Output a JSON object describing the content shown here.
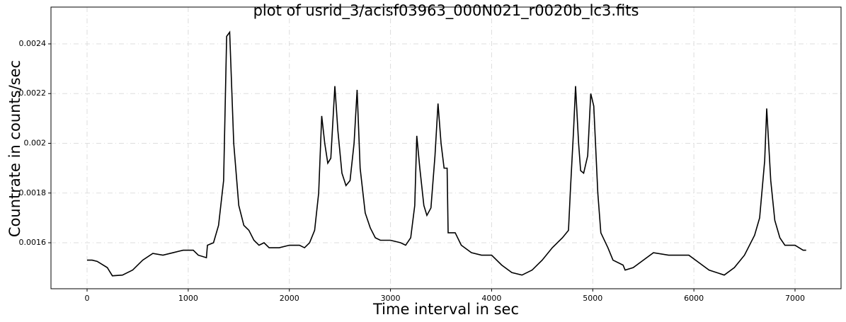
{
  "chart_data": {
    "type": "line",
    "title": "plot of usrid_3/acisf03963_000N021_r0020b_lc3.fits",
    "x_label": "Time interval in sec",
    "y_label": "Countrate in counts/sec",
    "grid": true,
    "xlim": [
      -357,
      7455
    ],
    "ylim": [
      0.001415,
      0.002548
    ],
    "xticks": [
      0,
      1000,
      2000,
      3000,
      4000,
      5000,
      6000,
      7000
    ],
    "yticks": [
      0.0016,
      0.0018,
      0.002,
      0.0022,
      0.0024
    ],
    "series": [
      {
        "color": "#000000",
        "x": [
          0,
          50,
          100,
          200,
          250,
          350,
          450,
          550,
          650,
          750,
          850,
          950,
          1000,
          1050,
          1100,
          1180,
          1190,
          1250,
          1300,
          1350,
          1380,
          1410,
          1450,
          1500,
          1550,
          1600,
          1650,
          1700,
          1750,
          1800,
          1900,
          2000,
          2100,
          2150,
          2200,
          2250,
          2290,
          2320,
          2350,
          2380,
          2410,
          2450,
          2480,
          2520,
          2560,
          2600,
          2640,
          2670,
          2700,
          2750,
          2800,
          2850,
          2900,
          3000,
          3100,
          3150,
          3200,
          3240,
          3260,
          3290,
          3330,
          3360,
          3400,
          3440,
          3470,
          3500,
          3530,
          3560,
          3570,
          3640,
          3700,
          3800,
          3900,
          4000,
          4100,
          4200,
          4300,
          4400,
          4500,
          4600,
          4700,
          4760,
          4780,
          4810,
          4830,
          4860,
          4880,
          4910,
          4950,
          4980,
          5010,
          5050,
          5080,
          5150,
          5200,
          5300,
          5320,
          5400,
          5500,
          5600,
          5750,
          5850,
          5950,
          6050,
          6150,
          6300,
          6400,
          6500,
          6600,
          6650,
          6700,
          6720,
          6760,
          6800,
          6850,
          6900,
          7000,
          7080,
          7110
        ],
        "values": [
          0.00153,
          0.00153,
          0.001525,
          0.0015,
          0.001467,
          0.00147,
          0.00149,
          0.00153,
          0.001557,
          0.00155,
          0.00156,
          0.00157,
          0.00157,
          0.00157,
          0.00155,
          0.00154,
          0.00159,
          0.0016,
          0.00167,
          0.00185,
          0.00243,
          0.002447,
          0.002,
          0.00175,
          0.00167,
          0.00165,
          0.00161,
          0.00159,
          0.0016,
          0.00158,
          0.00158,
          0.00159,
          0.00159,
          0.00158,
          0.0016,
          0.00165,
          0.0018,
          0.00211,
          0.002,
          0.00192,
          0.00194,
          0.00223,
          0.00205,
          0.00188,
          0.00183,
          0.00185,
          0.002,
          0.002215,
          0.0019,
          0.00172,
          0.00166,
          0.00162,
          0.00161,
          0.00161,
          0.0016,
          0.00159,
          0.00162,
          0.00175,
          0.00203,
          0.0019,
          0.00175,
          0.00171,
          0.00174,
          0.00195,
          0.00216,
          0.002,
          0.0019,
          0.0019,
          0.00164,
          0.00164,
          0.00159,
          0.00156,
          0.00155,
          0.00155,
          0.00151,
          0.00148,
          0.00147,
          0.00149,
          0.00153,
          0.00158,
          0.00162,
          0.00165,
          0.00182,
          0.00205,
          0.00223,
          0.002,
          0.00189,
          0.00188,
          0.00195,
          0.0022,
          0.00215,
          0.0018,
          0.00164,
          0.00158,
          0.00153,
          0.00151,
          0.00149,
          0.0015,
          0.00153,
          0.00156,
          0.00155,
          0.00155,
          0.00155,
          0.00152,
          0.00149,
          0.00147,
          0.0015,
          0.00155,
          0.00163,
          0.0017,
          0.00193,
          0.00214,
          0.00185,
          0.00169,
          0.00162,
          0.00159,
          0.00159,
          0.00157,
          0.00157
        ]
      }
    ]
  }
}
